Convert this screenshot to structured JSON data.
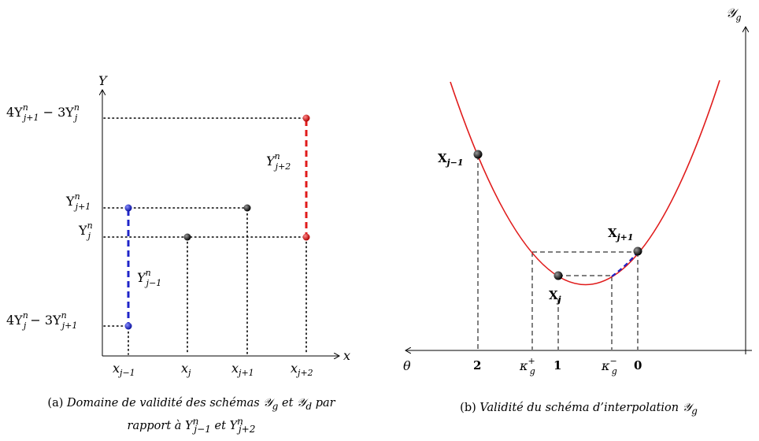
{
  "left": {
    "x_axis_label": "x",
    "y_axis_label": "Y",
    "y_ticks": [
      {
        "base": "4Y",
        "sup": "n",
        "sub": "j+1",
        "rest": " − 3Y",
        "rest_sup": "n",
        "rest_sub": "j"
      },
      {
        "base": "Y",
        "sup": "n",
        "sub": "j+1"
      },
      {
        "base": "Y",
        "sup": "n",
        "sub": "j"
      },
      {
        "base": "4Y",
        "sup": "n",
        "sub": "j",
        "rest": " − 3Y",
        "rest_sup": "n",
        "rest_sub": "j+1"
      }
    ],
    "x_ticks": [
      {
        "base": "x",
        "sub": "j−1"
      },
      {
        "base": "x",
        "sub": "j"
      },
      {
        "base": "x",
        "sub": "j+1"
      },
      {
        "base": "x",
        "sub": "j+2"
      }
    ],
    "blue_segment_label": {
      "base": "Y",
      "sup": "n",
      "sub": "j−1"
    },
    "red_segment_label": {
      "base": "Y",
      "sup": "n",
      "sub": "j+2"
    },
    "colors": {
      "blue": "#1f24c8",
      "red": "#e01b1b",
      "black": "#000000"
    }
  },
  "right": {
    "y_axis_label": {
      "base": "𝒴",
      "sub": "g"
    },
    "theta_label": "θ",
    "x_ticks": [
      "2",
      "1",
      "0"
    ],
    "kappa_plus": {
      "base": "κ",
      "sup": "+",
      "sub": "g"
    },
    "kappa_minus": {
      "base": "κ",
      "sup": "−",
      "sub": "g"
    },
    "point_labels": [
      {
        "base": "X",
        "sub": "j−1"
      },
      {
        "base": "X",
        "sub": "j"
      },
      {
        "base": "X",
        "sub": "j+1"
      }
    ],
    "colors": {
      "curve": "#e01b1b",
      "dashed_segment": "#1f24c8"
    }
  },
  "captions": {
    "a_prefix": "(a)",
    "a_text_1": "Domaine de validité des schémas 𝒴",
    "a_sub_g": "g",
    "a_et": " et 𝒴",
    "a_sub_d": "d",
    "a_par": " par",
    "a_line2_a": "rapport à Y",
    "a_line2_sup1": "n",
    "a_line2_sub1": "j−1",
    "a_line2_et": " et Y",
    "a_line2_sup2": "n",
    "a_line2_sub2": "j+2",
    "b_prefix": "(b)",
    "b_text": "Validité du schéma d’interpolation 𝒴",
    "b_sub": "g"
  }
}
